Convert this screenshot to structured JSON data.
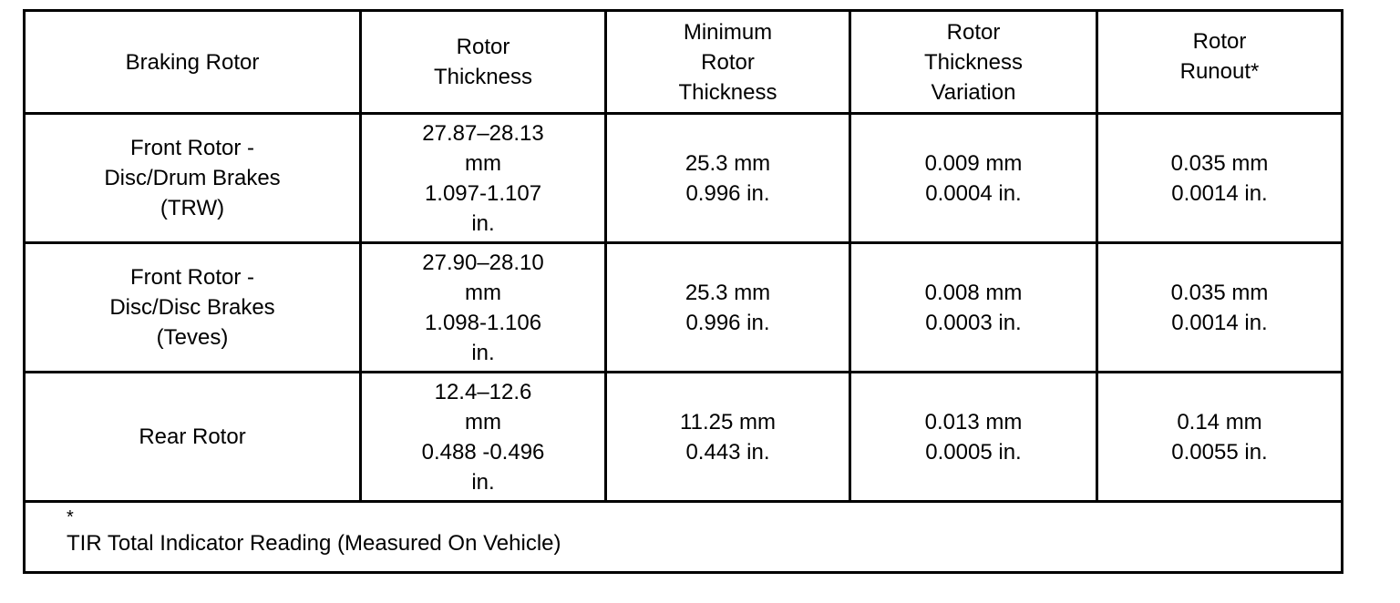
{
  "table": {
    "header": [
      [
        "Braking Rotor"
      ],
      [
        "Rotor",
        "Thickness"
      ],
      [
        "Minimum",
        "Rotor",
        "Thickness"
      ],
      [
        "Rotor",
        "Thickness",
        "Variation"
      ],
      [
        "Rotor",
        "Runout*"
      ]
    ],
    "rows": [
      [
        [
          "Front Rotor -",
          "Disc/Drum Brakes",
          "(TRW)"
        ],
        [
          "27.87–28.13",
          "mm",
          "1.097-1.107",
          "in."
        ],
        [
          "25.3 mm",
          "0.996 in."
        ],
        [
          "0.009 mm",
          "0.0004 in."
        ],
        [
          "0.035 mm",
          "0.0014 in."
        ]
      ],
      [
        [
          "Front Rotor -",
          "Disc/Disc Brakes",
          "(Teves)"
        ],
        [
          "27.90–28.10",
          "mm",
          "1.098-1.106",
          "in."
        ],
        [
          "25.3 mm",
          "0.996 in."
        ],
        [
          "0.008 mm",
          "0.0003 in."
        ],
        [
          "0.035 mm",
          "0.0014 in."
        ]
      ],
      [
        [
          "Rear Rotor"
        ],
        [
          "12.4–12.6",
          "mm",
          "0.488 -0.496",
          "in."
        ],
        [
          "11.25 mm",
          "0.443 in."
        ],
        [
          "0.013 mm",
          "0.0005 in."
        ],
        [
          "0.14 mm",
          "0.0055 in."
        ]
      ]
    ],
    "footnote": [
      "*",
      "TIR Total Indicator Reading (Measured On Vehicle)"
    ]
  }
}
